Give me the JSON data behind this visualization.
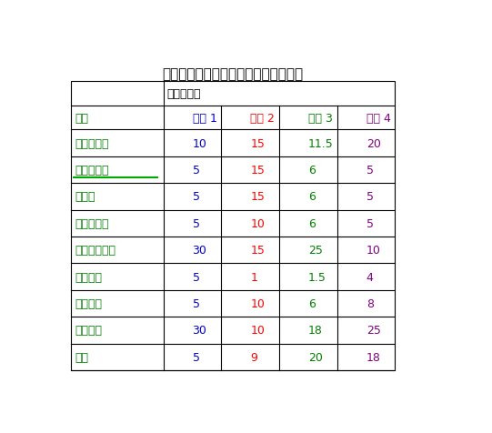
{
  "title": "复合汽油添加剂其组分重量配比如下：",
  "header_merged": "重量百分比",
  "col_header": [
    "组分",
    "配方 1",
    "配方 2",
    "配方 3",
    "配方 4"
  ],
  "rows": [
    [
      "聚异丁烯胺",
      "10",
      "15",
      "11.5",
      "20"
    ],
    [
      "聚氧乙烯醚",
      "5",
      "15",
      "6",
      "5"
    ],
    [
      "异丙醇",
      "5",
      "15",
      "6",
      "5"
    ],
    [
      "硼酸三甲脂",
      "5",
      "10",
      "6",
      "5"
    ],
    [
      "二甲氧基甲烷",
      "30",
      "15",
      "25",
      "10"
    ],
    [
      "环烷酸铁",
      "5",
      "1",
      "1.5",
      "4"
    ],
    [
      "四氢呋喃",
      "5",
      "10",
      "6",
      "8"
    ],
    [
      "二异丁酮",
      "30",
      "10",
      "18",
      "25"
    ],
    [
      "煤油",
      "5",
      "9",
      "20",
      "18"
    ]
  ],
  "title_color": "#000000",
  "header_color": "#000000",
  "col0_color": "#008000",
  "col1_color": "#0000CD",
  "col2_color": "#FF0000",
  "col3_color": "#008000",
  "col4_color": "#800080",
  "bg_color": "#FFFFFF",
  "table_border_color": "#000000",
  "font_size_title": 11,
  "font_size_header": 9,
  "font_size_cell": 9,
  "underline_row": 1,
  "underline_color": "#00AA00"
}
